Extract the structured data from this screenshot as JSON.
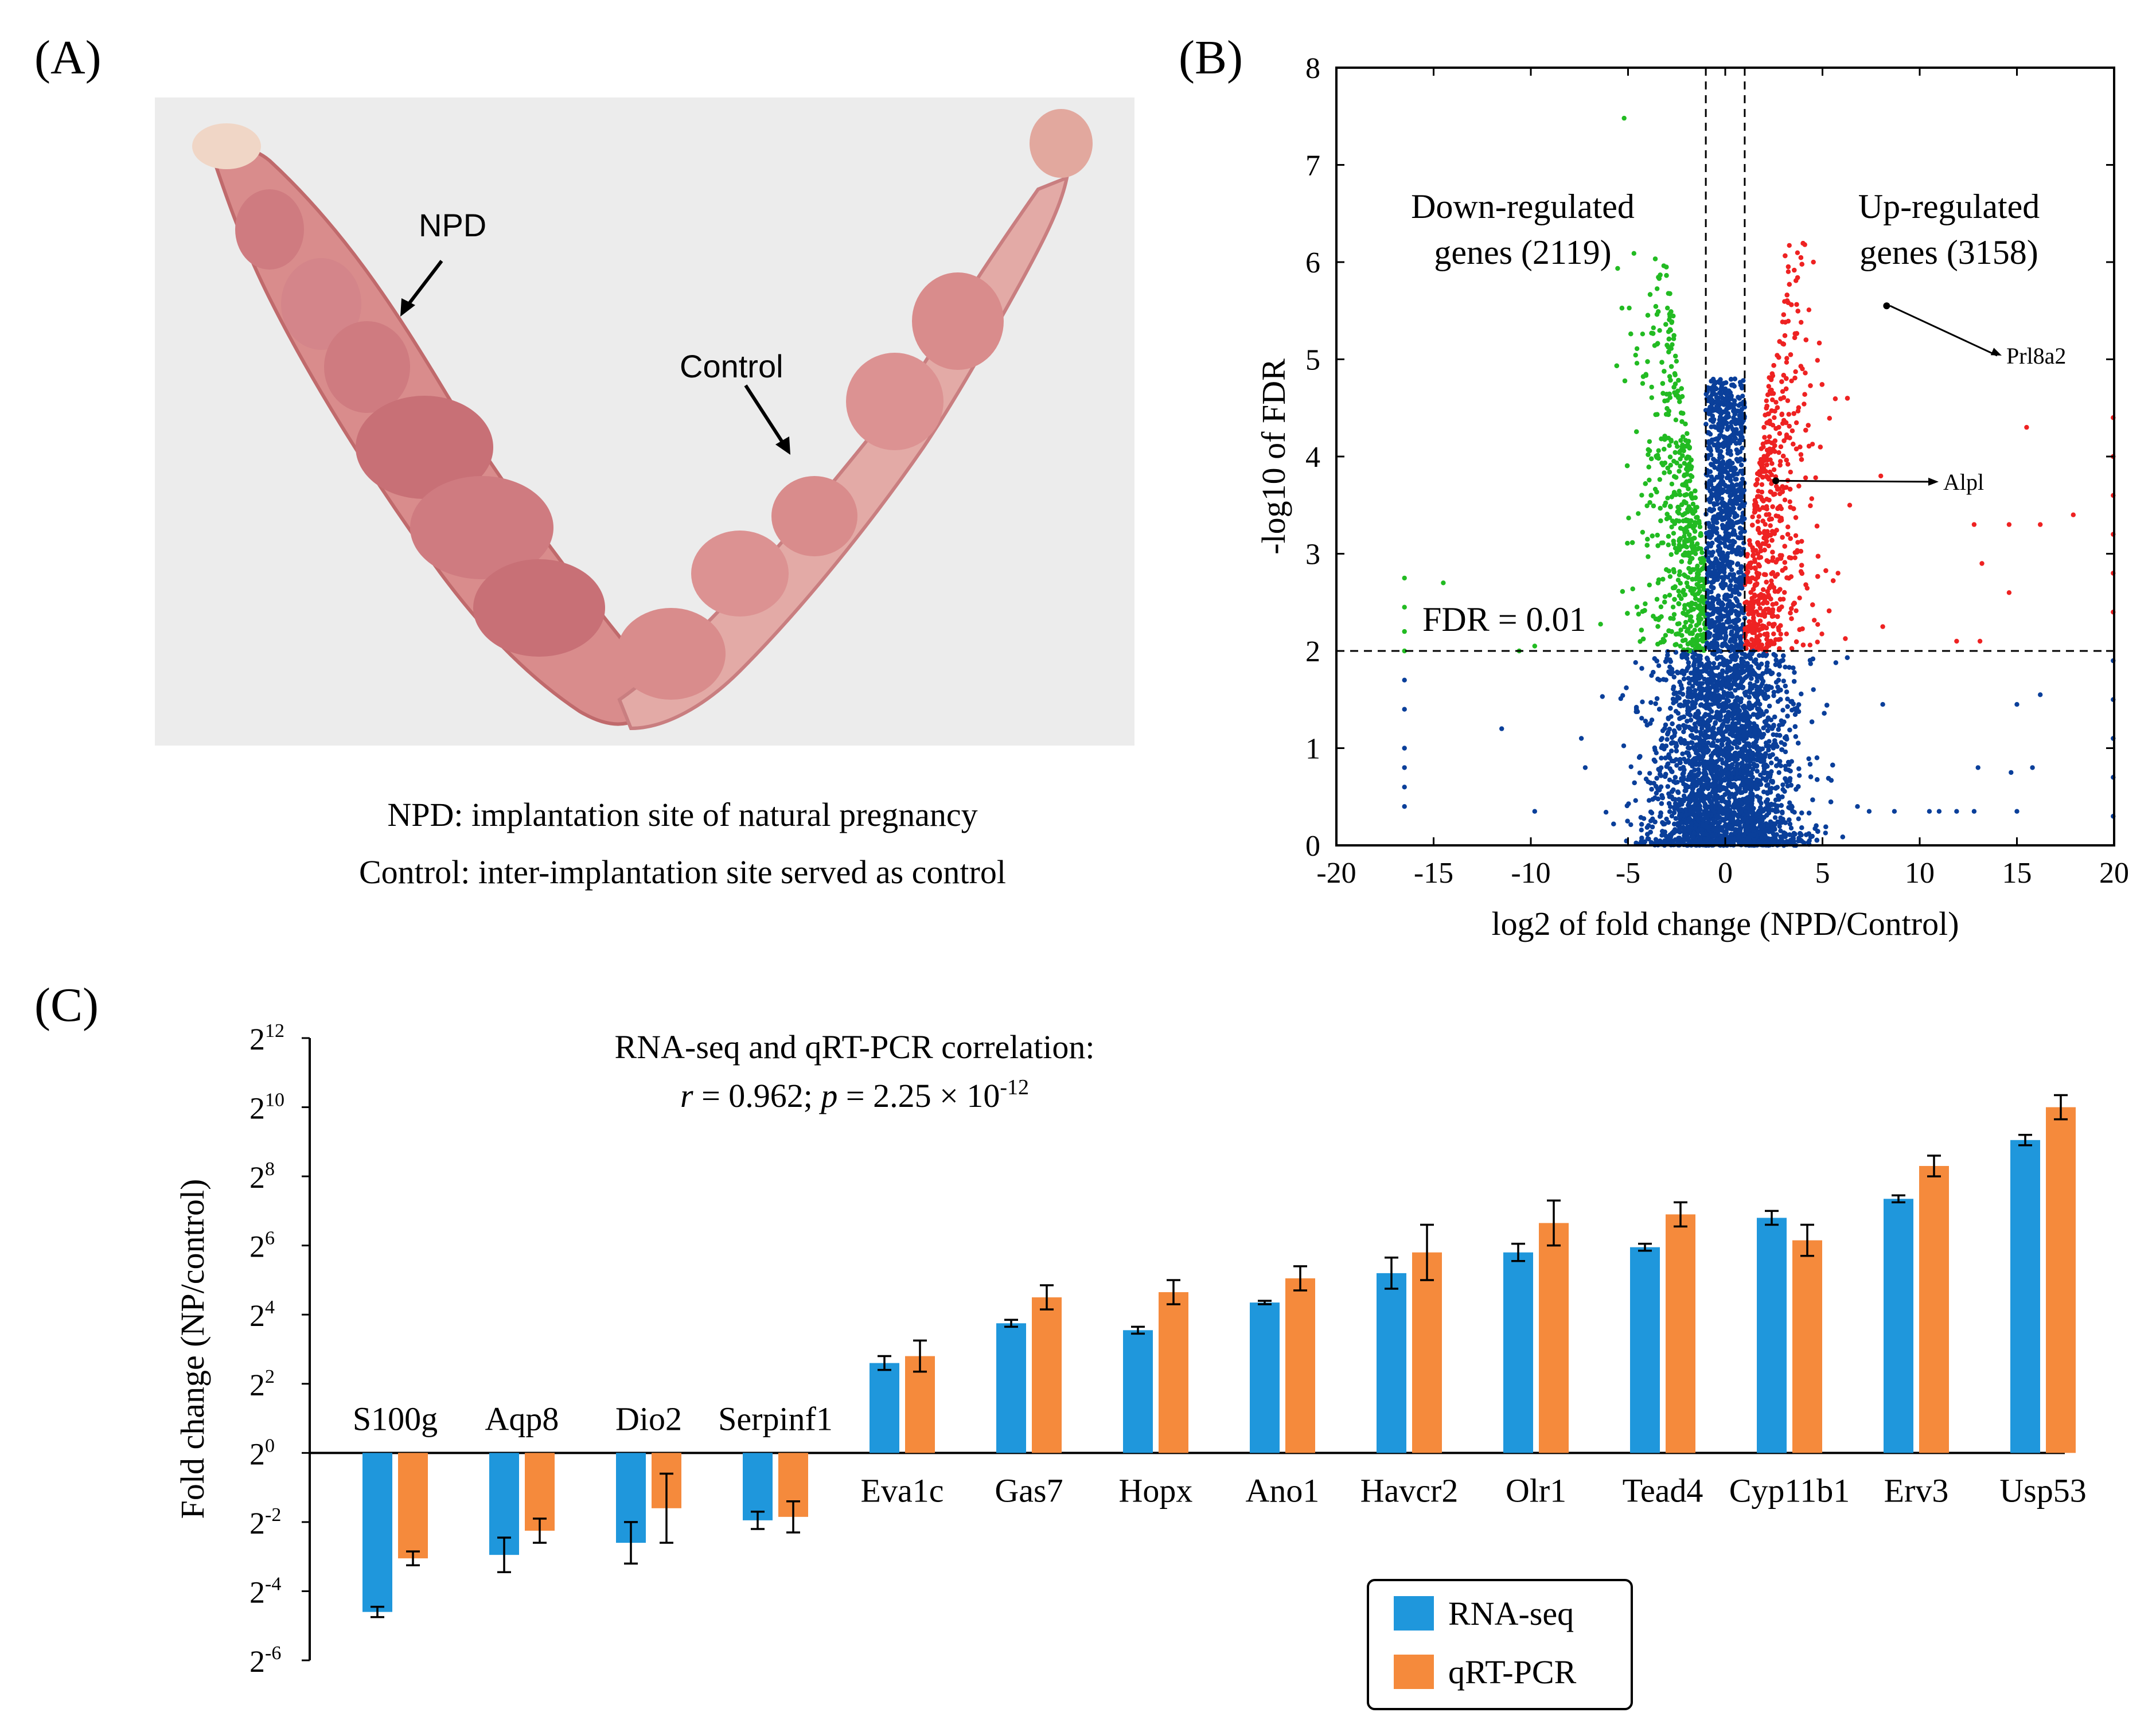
{
  "panel_labels": {
    "a": "(A)",
    "b": "(B)",
    "c": "(C)"
  },
  "photo": {
    "npd_label": "NPD",
    "control_label": "Control",
    "caption_line1": "NPD: implantation site of natural pregnancy",
    "caption_line2": "Control: inter-implantation site served as control",
    "colors": {
      "background": "#ececec",
      "tissue": "#d98c8c",
      "tissue_dark": "#c06a6c",
      "tube": "#e8c8b8"
    }
  },
  "chart_data": [
    {
      "id": "volcano",
      "type": "scatter",
      "xlabel": "log2 of fold change (NPD/Control)",
      "ylabel": "-log10 of FDR",
      "xlim": [
        -20,
        20
      ],
      "ylim": [
        0,
        8
      ],
      "xticks": [
        -20,
        -15,
        -10,
        -5,
        0,
        5,
        10,
        15,
        20
      ],
      "yticks": [
        0,
        1,
        2,
        3,
        4,
        5,
        6,
        7,
        8
      ],
      "fdr_threshold": 2,
      "fold_change_cutoffs": [
        -1,
        1
      ],
      "fdr_label": "FDR = 0.01",
      "down_label_line1": "Down-regulated",
      "down_label_line2": "genes (2119)",
      "up_label_line1": "Up-regulated",
      "up_label_line2": "genes (3158)",
      "down_count": 2119,
      "up_count": 3158,
      "colors": {
        "down": "#22bb22",
        "up": "#ee2222",
        "ns": "#0a3f9a"
      },
      "annotations": [
        {
          "label": "Prl8a2",
          "x": 8.3,
          "y": 5.55
        },
        {
          "label": "Alpl",
          "x": 2.6,
          "y": 3.75
        }
      ],
      "outliers": {
        "down": [
          [
            -16.5,
            2.0
          ],
          [
            -16.5,
            2.2
          ],
          [
            -16.5,
            2.45
          ],
          [
            -16.5,
            2.75
          ],
          [
            -14.5,
            2.7
          ],
          [
            -10.6,
            2.0
          ],
          [
            -9.8,
            2.05
          ],
          [
            -5.2,
            7.48
          ]
        ],
        "up": [
          [
            8.0,
            3.8
          ],
          [
            12.8,
            3.3
          ],
          [
            13.2,
            2.9
          ],
          [
            14.6,
            3.3
          ],
          [
            15.5,
            4.3
          ],
          [
            16.2,
            3.3
          ],
          [
            17.9,
            3.4
          ],
          [
            14.6,
            2.6
          ],
          [
            13.1,
            2.1
          ],
          [
            11.9,
            2.1
          ],
          [
            8.1,
            2.25
          ],
          [
            6.4,
            3.5
          ],
          [
            5.8,
            2.8
          ]
        ],
        "ns": [
          [
            -16.5,
            1.7
          ],
          [
            -16.5,
            1.4
          ],
          [
            -16.5,
            1.0
          ],
          [
            -16.5,
            0.8
          ],
          [
            -16.5,
            0.6
          ],
          [
            -16.5,
            0.4
          ],
          [
            -11.5,
            1.2
          ],
          [
            -9.8,
            0.35
          ],
          [
            -7.4,
            1.1
          ],
          [
            -7.2,
            0.8
          ],
          [
            8.1,
            1.45
          ],
          [
            8.7,
            0.35
          ],
          [
            10.5,
            0.35
          ],
          [
            11.0,
            0.35
          ],
          [
            11.9,
            0.35
          ],
          [
            12.8,
            0.35
          ],
          [
            15.0,
            0.35
          ],
          [
            13.0,
            0.8
          ],
          [
            14.7,
            0.75
          ],
          [
            15.8,
            0.8
          ],
          [
            16.2,
            1.55
          ],
          [
            15.0,
            1.45
          ],
          [
            7.4,
            0.35
          ],
          [
            6.8,
            0.4
          ]
        ],
        "edge_up": [
          [
            20,
            4.4
          ],
          [
            20,
            4.0
          ],
          [
            20,
            3.6
          ],
          [
            20,
            3.2
          ],
          [
            20,
            2.8
          ],
          [
            20,
            2.4
          ]
        ],
        "edge_ns": [
          [
            20,
            1.9
          ],
          [
            20,
            1.5
          ],
          [
            20,
            1.1
          ],
          [
            20,
            0.7
          ],
          [
            20,
            0.3
          ]
        ]
      }
    },
    {
      "id": "qpcr",
      "type": "bar",
      "ylabel": "Fold change (NP/control)",
      "y_scale": "log2",
      "ylim_exponent": [
        -6,
        12
      ],
      "ytick_base": "2",
      "yticks_exponent": [
        -6,
        -4,
        -2,
        0,
        2,
        4,
        6,
        8,
        10,
        12
      ],
      "correlation_line1": "RNA-seq and qRT-PCR correlation:",
      "correlation_r": "r",
      "correlation_mid": " = 0.962; ",
      "correlation_p": "p",
      "correlation_value": " = 2.25 × 10",
      "correlation_exp": "-12",
      "categories": [
        "S100g",
        "Aqp8",
        "Dio2",
        "Serpinf1",
        "Eva1c",
        "Gas7",
        "Hopx",
        "Ano1",
        "Havcr2",
        "Olr1",
        "Tead4",
        "Cyp11b1",
        "Erv3",
        "Usp53"
      ],
      "series": [
        {
          "name": "RNA-seq",
          "color": "#1f97dc",
          "values": [
            -4.6,
            -2.95,
            -2.6,
            -1.95,
            2.6,
            3.75,
            3.55,
            4.35,
            5.2,
            5.8,
            5.95,
            6.8,
            7.35,
            9.05
          ],
          "errors": [
            0.15,
            0.5,
            0.6,
            0.25,
            0.2,
            0.1,
            0.1,
            0.05,
            0.45,
            0.25,
            0.1,
            0.2,
            0.1,
            0.15
          ]
        },
        {
          "name": "qRT-PCR",
          "color": "#f58a3c",
          "values": [
            -3.05,
            -2.25,
            -1.6,
            -1.85,
            2.8,
            4.5,
            4.65,
            5.05,
            5.8,
            6.65,
            6.9,
            6.15,
            8.3,
            10.0
          ],
          "errors": [
            0.2,
            0.35,
            1.0,
            0.45,
            0.45,
            0.35,
            0.35,
            0.35,
            0.8,
            0.65,
            0.35,
            0.45,
            0.3,
            0.35
          ]
        }
      ],
      "legend": {
        "rna_seq": "RNA-seq",
        "qrt_pcr": "qRT-PCR",
        "placement": "bottom-right"
      }
    }
  ]
}
